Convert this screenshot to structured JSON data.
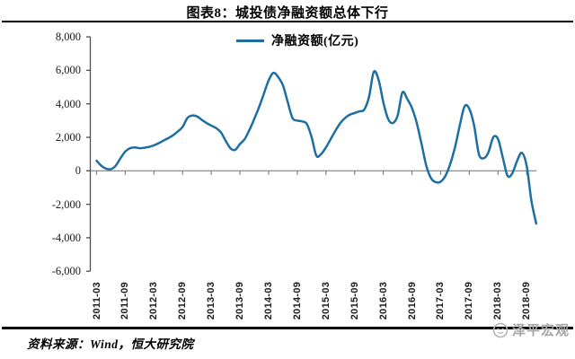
{
  "title": "图表8：城投债净融资额总体下行",
  "legend": {
    "label": "净融资额(亿元)"
  },
  "footer": {
    "source": "资料来源：Wind，恒大研究院",
    "watermark": "泽平宏观"
  },
  "colors": {
    "line": "#1d6fa3",
    "y_axis": "#4d4d4d",
    "zero_axis": "#808080",
    "rule": "#000000",
    "watermark": "#a6a6a6"
  },
  "chart_data": {
    "type": "line",
    "title": "图表8：城投债净融资额总体下行",
    "grid": false,
    "legend_position": "top-center",
    "ylim": [
      -6000,
      8000
    ],
    "y_ticks": [
      8000,
      6000,
      4000,
      2000,
      0,
      -2000,
      -4000,
      -6000
    ],
    "y_tick_labels": [
      "8,000",
      "6,000",
      "4,000",
      "2,000",
      "0",
      "-2,000",
      "-4,000",
      "-6,000"
    ],
    "x_tick_labels": [
      "2011-03",
      "2011-09",
      "2012-03",
      "2012-09",
      "2013-03",
      "2013-09",
      "2014-03",
      "2014-09",
      "2015-03",
      "2015-09",
      "2016-03",
      "2016-09",
      "2017-03",
      "2017-09",
      "2018-03",
      "2018-09"
    ],
    "x_start": "2011-03",
    "x_interval": "monthly",
    "series": [
      {
        "name": "净融资额(亿元)",
        "values": [
          600,
          300,
          130,
          100,
          300,
          750,
          1150,
          1350,
          1400,
          1350,
          1380,
          1430,
          1520,
          1650,
          1800,
          1950,
          2120,
          2350,
          2620,
          3150,
          3300,
          3250,
          3050,
          2850,
          2700,
          2550,
          2300,
          1800,
          1350,
          1250,
          1600,
          1900,
          2450,
          3100,
          3800,
          4600,
          5400,
          5850,
          5600,
          5100,
          4100,
          3150,
          3000,
          2950,
          2800,
          2000,
          900,
          1000,
          1400,
          1900,
          2400,
          2850,
          3150,
          3350,
          3450,
          3550,
          3650,
          4400,
          5900,
          5450,
          4100,
          3100,
          2850,
          3300,
          4680,
          4300,
          3750,
          2850,
          1600,
          300,
          -450,
          -680,
          -650,
          -300,
          400,
          1400,
          2700,
          3850,
          3700,
          2700,
          1000,
          750,
          1100,
          2000,
          1900,
          800,
          -300,
          -150,
          600,
          1070,
          300,
          -1800,
          -3150
        ]
      }
    ]
  }
}
